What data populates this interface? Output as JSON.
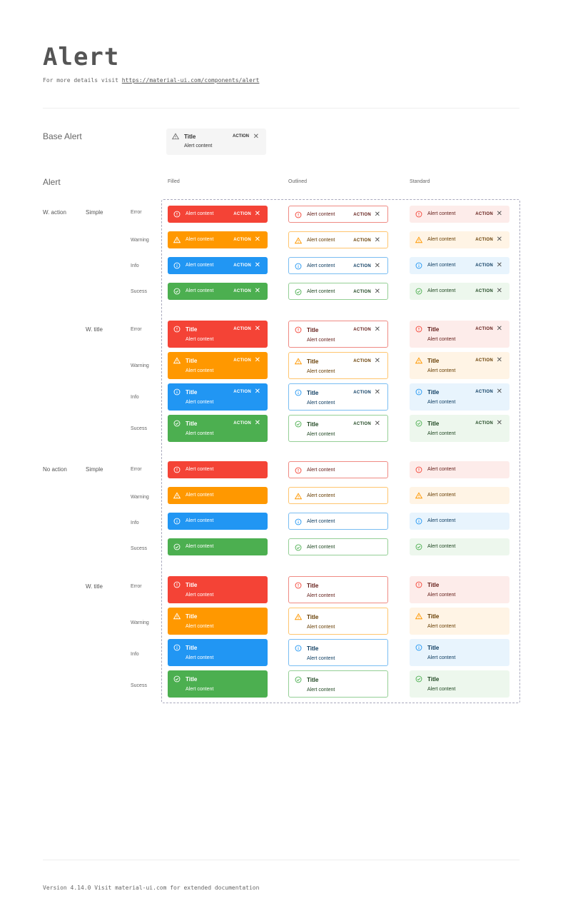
{
  "header": {
    "title": "Alert",
    "subtitle_prefix": "For more details visit ",
    "link": "https://material-ui.com/components/alert"
  },
  "base": {
    "label": "Base Alert",
    "title": "Title",
    "content": "Alert content",
    "action": "ACTION",
    "icon": "warning-icon",
    "close": "✕"
  },
  "alert_section": {
    "label": "Alert"
  },
  "columns": [
    {
      "key": "filled",
      "label": "Filled"
    },
    {
      "key": "outlined",
      "label": "Outlined"
    },
    {
      "key": "standard",
      "label": "Standard"
    }
  ],
  "groups": [
    {
      "label": "W. action",
      "variants": [
        {
          "label": "Simple"
        },
        {
          "label": "W. title"
        }
      ]
    },
    {
      "label": "No action",
      "variants": [
        {
          "label": "Simple"
        },
        {
          "label": "W. title"
        }
      ]
    }
  ],
  "types": [
    {
      "key": "error",
      "label": "Error",
      "icon": "error-outline-icon"
    },
    {
      "key": "warning",
      "label": "Warning",
      "icon": "warning-icon"
    },
    {
      "key": "info",
      "label": "Info",
      "icon": "info-outline-icon"
    },
    {
      "key": "success",
      "label": "Sucess",
      "icon": "check-circle-icon"
    }
  ],
  "alert_text": {
    "title": "Title",
    "content": "Alert content",
    "action": "ACTION",
    "close": "✕"
  },
  "colors": {
    "error": {
      "main": "#f44336",
      "border": "#ef8a83",
      "text": "#611a15",
      "bg": "#fdecea"
    },
    "warning": {
      "main": "#ff9800",
      "border": "#ffc56e",
      "text": "#663c00",
      "bg": "#fff4e5"
    },
    "info": {
      "main": "#2196f3",
      "border": "#79bdf2",
      "text": "#0d3c61",
      "bg": "#e8f4fd"
    },
    "success": {
      "main": "#4caf50",
      "border": "#94cf95",
      "text": "#1e4620",
      "bg": "#edf7ed"
    }
  },
  "footer": {
    "text": "Version 4.14.0  Visit material-ui.com for extended documentation"
  }
}
